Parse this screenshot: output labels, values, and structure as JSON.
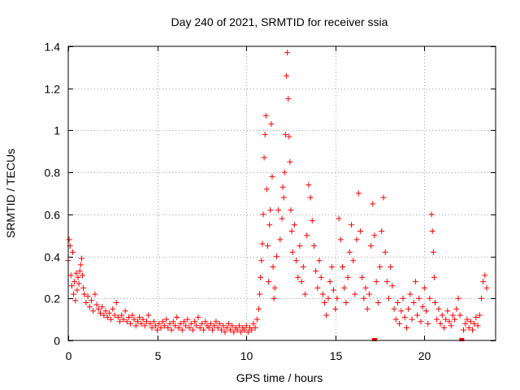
{
  "chart_data": {
    "type": "scatter",
    "title": "Day 240 of 2021, SRMTID for receiver ssia",
    "xlabel": "GPS time / hours",
    "ylabel": "SRMTID / TECUs",
    "xlim": [
      0,
      24
    ],
    "ylim": [
      0,
      1.4
    ],
    "xticks": [
      0,
      5,
      10,
      15,
      20
    ],
    "xtick_labels": [
      "0",
      "5",
      "10",
      "15",
      "20"
    ],
    "yticks": [
      0,
      0.2,
      0.4,
      0.6,
      0.8,
      1,
      1.2,
      1.4
    ],
    "ytick_labels": [
      "0",
      "0.2",
      "0.4",
      "0.6",
      "0.8",
      "1",
      "1.2",
      "1.4"
    ],
    "grid": true,
    "marker": "plus",
    "color": "#ff0000",
    "series": [
      {
        "name": "SRMTID",
        "points": [
          [
            0.0,
            0.38
          ],
          [
            0.05,
            0.48
          ],
          [
            0.1,
            0.45
          ],
          [
            0.15,
            0.31
          ],
          [
            0.2,
            0.26
          ],
          [
            0.25,
            0.42
          ],
          [
            0.3,
            0.22
          ],
          [
            0.35,
            0.28
          ],
          [
            0.4,
            0.19
          ],
          [
            0.45,
            0.32
          ],
          [
            0.5,
            0.24
          ],
          [
            0.55,
            0.3
          ],
          [
            0.6,
            0.27
          ],
          [
            0.65,
            0.33
          ],
          [
            0.7,
            0.36
          ],
          [
            0.75,
            0.39
          ],
          [
            0.8,
            0.31
          ],
          [
            0.85,
            0.25
          ],
          [
            0.9,
            0.22
          ],
          [
            1.0,
            0.18
          ],
          [
            1.1,
            0.21
          ],
          [
            1.2,
            0.16
          ],
          [
            1.3,
            0.19
          ],
          [
            1.4,
            0.14
          ],
          [
            1.5,
            0.22
          ],
          [
            1.6,
            0.17
          ],
          [
            1.7,
            0.15
          ],
          [
            1.8,
            0.13
          ],
          [
            1.9,
            0.16
          ],
          [
            2.0,
            0.12
          ],
          [
            2.1,
            0.14
          ],
          [
            2.2,
            0.11
          ],
          [
            2.3,
            0.13
          ],
          [
            2.4,
            0.1
          ],
          [
            2.5,
            0.15
          ],
          [
            2.6,
            0.12
          ],
          [
            2.7,
            0.18
          ],
          [
            2.8,
            0.11
          ],
          [
            2.9,
            0.09
          ],
          [
            3.0,
            0.12
          ],
          [
            3.1,
            0.1
          ],
          [
            3.2,
            0.14
          ],
          [
            3.3,
            0.09
          ],
          [
            3.4,
            0.11
          ],
          [
            3.5,
            0.08
          ],
          [
            3.6,
            0.12
          ],
          [
            3.7,
            0.1
          ],
          [
            3.8,
            0.07
          ],
          [
            3.9,
            0.09
          ],
          [
            4.0,
            0.11
          ],
          [
            4.1,
            0.08
          ],
          [
            4.2,
            0.1
          ],
          [
            4.3,
            0.07
          ],
          [
            4.4,
            0.09
          ],
          [
            4.5,
            0.12
          ],
          [
            4.6,
            0.08
          ],
          [
            4.7,
            0.06
          ],
          [
            4.8,
            0.09
          ],
          [
            4.9,
            0.07
          ],
          [
            5.0,
            0.05
          ],
          [
            5.1,
            0.08
          ],
          [
            5.2,
            0.06
          ],
          [
            5.3,
            0.09
          ],
          [
            5.4,
            0.07
          ],
          [
            5.5,
            0.1
          ],
          [
            5.6,
            0.06
          ],
          [
            5.7,
            0.08
          ],
          [
            5.8,
            0.05
          ],
          [
            5.9,
            0.09
          ],
          [
            6.0,
            0.07
          ],
          [
            6.1,
            0.11
          ],
          [
            6.2,
            0.06
          ],
          [
            6.3,
            0.08
          ],
          [
            6.4,
            0.05
          ],
          [
            6.5,
            0.09
          ],
          [
            6.6,
            0.07
          ],
          [
            6.7,
            0.1
          ],
          [
            6.8,
            0.06
          ],
          [
            6.9,
            0.08
          ],
          [
            7.0,
            0.05
          ],
          [
            7.1,
            0.09
          ],
          [
            7.2,
            0.07
          ],
          [
            7.3,
            0.11
          ],
          [
            7.4,
            0.06
          ],
          [
            7.5,
            0.08
          ],
          [
            7.6,
            0.05
          ],
          [
            7.7,
            0.09
          ],
          [
            7.8,
            0.07
          ],
          [
            7.9,
            0.06
          ],
          [
            8.0,
            0.08
          ],
          [
            8.1,
            0.05
          ],
          [
            8.2,
            0.07
          ],
          [
            8.3,
            0.09
          ],
          [
            8.4,
            0.06
          ],
          [
            8.5,
            0.08
          ],
          [
            8.6,
            0.05
          ],
          [
            8.7,
            0.07
          ],
          [
            8.8,
            0.04
          ],
          [
            8.9,
            0.06
          ],
          [
            9.0,
            0.08
          ],
          [
            9.1,
            0.05
          ],
          [
            9.2,
            0.07
          ],
          [
            9.3,
            0.04
          ],
          [
            9.4,
            0.06
          ],
          [
            9.5,
            0.05
          ],
          [
            9.6,
            0.07
          ],
          [
            9.7,
            0.04
          ],
          [
            9.8,
            0.06
          ],
          [
            9.9,
            0.05
          ],
          [
            10.0,
            0.07
          ],
          [
            10.1,
            0.04
          ],
          [
            10.2,
            0.06
          ],
          [
            10.3,
            0.05
          ],
          [
            10.4,
            0.08
          ],
          [
            10.5,
            0.06
          ],
          [
            10.6,
            0.1
          ],
          [
            10.7,
            0.15
          ],
          [
            10.75,
            0.22
          ],
          [
            10.8,
            0.3
          ],
          [
            10.85,
            0.38
          ],
          [
            10.9,
            0.46
          ],
          [
            10.95,
            0.6
          ],
          [
            11.0,
            0.87
          ],
          [
            11.05,
            0.98
          ],
          [
            11.1,
            1.07
          ],
          [
            11.15,
            0.72
          ],
          [
            11.2,
            0.45
          ],
          [
            11.25,
            0.28
          ],
          [
            11.3,
            0.55
          ],
          [
            11.35,
            0.62
          ],
          [
            11.4,
            1.03
          ],
          [
            11.45,
            0.78
          ],
          [
            11.5,
            0.35
          ],
          [
            11.55,
            0.2
          ],
          [
            11.6,
            0.25
          ],
          [
            11.7,
            0.4
          ],
          [
            11.8,
            0.62
          ],
          [
            11.9,
            0.48
          ],
          [
            12.0,
            0.58
          ],
          [
            12.05,
            0.73
          ],
          [
            12.1,
            0.68
          ],
          [
            12.15,
            0.8
          ],
          [
            12.2,
            0.98
          ],
          [
            12.25,
            1.26
          ],
          [
            12.3,
            1.37
          ],
          [
            12.35,
            1.15
          ],
          [
            12.4,
            0.97
          ],
          [
            12.45,
            0.85
          ],
          [
            12.5,
            0.62
          ],
          [
            12.55,
            0.52
          ],
          [
            12.6,
            0.42
          ],
          [
            12.7,
            0.55
          ],
          [
            12.8,
            0.38
          ],
          [
            12.9,
            0.3
          ],
          [
            13.0,
            0.45
          ],
          [
            13.1,
            0.28
          ],
          [
            13.2,
            0.35
          ],
          [
            13.3,
            0.22
          ],
          [
            13.4,
            0.5
          ],
          [
            13.5,
            0.74
          ],
          [
            13.6,
            0.68
          ],
          [
            13.7,
            0.57
          ],
          [
            13.8,
            0.45
          ],
          [
            13.9,
            0.33
          ],
          [
            14.0,
            0.25
          ],
          [
            14.1,
            0.38
          ],
          [
            14.2,
            0.3
          ],
          [
            14.3,
            0.22
          ],
          [
            14.4,
            0.18
          ],
          [
            14.5,
            0.12
          ],
          [
            14.6,
            0.2
          ],
          [
            14.7,
            0.28
          ],
          [
            14.8,
            0.35
          ],
          [
            14.9,
            0.24
          ],
          [
            15.0,
            0.15
          ],
          [
            15.1,
            0.2
          ],
          [
            15.2,
            0.58
          ],
          [
            15.3,
            0.48
          ],
          [
            15.4,
            0.35
          ],
          [
            15.5,
            0.25
          ],
          [
            15.6,
            0.18
          ],
          [
            15.7,
            0.3
          ],
          [
            15.8,
            0.42
          ],
          [
            15.9,
            0.55
          ],
          [
            16.0,
            0.38
          ],
          [
            16.1,
            0.22
          ],
          [
            16.2,
            0.48
          ],
          [
            16.3,
            0.7
          ],
          [
            16.4,
            0.52
          ],
          [
            16.5,
            0.3
          ],
          [
            16.6,
            0.2
          ],
          [
            16.7,
            0.25
          ],
          [
            16.8,
            0.15
          ],
          [
            16.9,
            0.22
          ],
          [
            17.0,
            0.45
          ],
          [
            17.1,
            0.65
          ],
          [
            17.2,
            0.5
          ],
          [
            17.3,
            0.28
          ],
          [
            17.4,
            0.18
          ],
          [
            17.5,
            0.35
          ],
          [
            17.6,
            0.52
          ],
          [
            17.7,
            0.68
          ],
          [
            17.8,
            0.42
          ],
          [
            17.9,
            0.28
          ],
          [
            18.0,
            0.2
          ],
          [
            18.1,
            0.35
          ],
          [
            18.2,
            0.26
          ],
          [
            18.3,
            0.15
          ],
          [
            18.4,
            0.1
          ],
          [
            18.5,
            0.18
          ],
          [
            18.6,
            0.08
          ],
          [
            18.7,
            0.14
          ],
          [
            18.8,
            0.2
          ],
          [
            18.9,
            0.11
          ],
          [
            19.0,
            0.06
          ],
          [
            19.1,
            0.15
          ],
          [
            19.2,
            0.22
          ],
          [
            19.3,
            0.1
          ],
          [
            19.4,
            0.18
          ],
          [
            19.5,
            0.28
          ],
          [
            19.6,
            0.12
          ],
          [
            19.7,
            0.2
          ],
          [
            19.8,
            0.09
          ],
          [
            19.9,
            0.16
          ],
          [
            20.0,
            0.25
          ],
          [
            20.1,
            0.14
          ],
          [
            20.2,
            0.08
          ],
          [
            20.3,
            0.2
          ],
          [
            20.4,
            0.6
          ],
          [
            20.45,
            0.52
          ],
          [
            20.5,
            0.42
          ],
          [
            20.55,
            0.3
          ],
          [
            20.6,
            0.18
          ],
          [
            20.7,
            0.1
          ],
          [
            20.8,
            0.15
          ],
          [
            20.9,
            0.08
          ],
          [
            21.0,
            0.12
          ],
          [
            21.1,
            0.06
          ],
          [
            21.2,
            0.1
          ],
          [
            21.3,
            0.14
          ],
          [
            21.4,
            0.09
          ],
          [
            21.5,
            0.07
          ],
          [
            21.6,
            0.12
          ],
          [
            21.7,
            0.1
          ],
          [
            21.8,
            0.15
          ],
          [
            21.9,
            0.2
          ],
          [
            22.0,
            0.12
          ],
          [
            22.2,
            0.05
          ],
          [
            22.3,
            0.08
          ],
          [
            22.4,
            0.1
          ],
          [
            22.5,
            0.06
          ],
          [
            22.6,
            0.09
          ],
          [
            22.7,
            0.05
          ],
          [
            22.8,
            0.08
          ],
          [
            22.9,
            0.11
          ],
          [
            23.0,
            0.07
          ],
          [
            23.1,
            0.12
          ],
          [
            23.2,
            0.2
          ],
          [
            23.3,
            0.28
          ],
          [
            23.4,
            0.31
          ],
          [
            23.5,
            0.25
          ]
        ]
      }
    ]
  }
}
